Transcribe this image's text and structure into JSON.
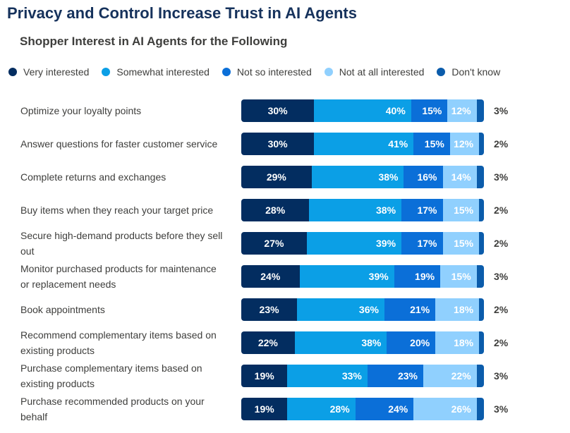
{
  "title": "Privacy and Control Increase Trust in AI Agents",
  "subtitle": "Shopper Interest in AI Agents for the Following",
  "chart_data": {
    "type": "bar",
    "orientation": "horizontal",
    "stacked": true,
    "title": "Privacy and Control Increase Trust in AI Agents",
    "subtitle": "Shopper Interest in AI Agents for the Following",
    "unit": "%",
    "legend_position": "top",
    "categories": [
      "Optimize your loyalty points",
      "Answer questions for faster customer service",
      "Complete returns and exchanges",
      "Buy items when they reach your target price",
      "Secure high-demand products before they sell out",
      "Monitor purchased products for maintenance or replacement needs",
      "Book appointments",
      "Recommend complementary items based on existing products",
      "Purchase complementary items based on existing products",
      "Purchase recommended products on your behalf"
    ],
    "series": [
      {
        "name": "Very interested",
        "color": "#032d60",
        "values": [
          30,
          30,
          29,
          28,
          27,
          24,
          23,
          22,
          19,
          19
        ]
      },
      {
        "name": "Somewhat interested",
        "color": "#0b9fe6",
        "values": [
          40,
          41,
          38,
          38,
          39,
          39,
          36,
          38,
          33,
          28
        ]
      },
      {
        "name": "Not so interested",
        "color": "#0b6fd8",
        "values": [
          15,
          15,
          16,
          17,
          17,
          19,
          21,
          20,
          23,
          24
        ]
      },
      {
        "name": "Not at all interested",
        "color": "#90d0fe",
        "values": [
          12,
          12,
          14,
          15,
          15,
          15,
          18,
          18,
          22,
          26
        ]
      },
      {
        "name": "Don't know",
        "color": "#0b5cab",
        "values": [
          3,
          2,
          3,
          2,
          2,
          3,
          2,
          2,
          3,
          3
        ]
      }
    ]
  }
}
